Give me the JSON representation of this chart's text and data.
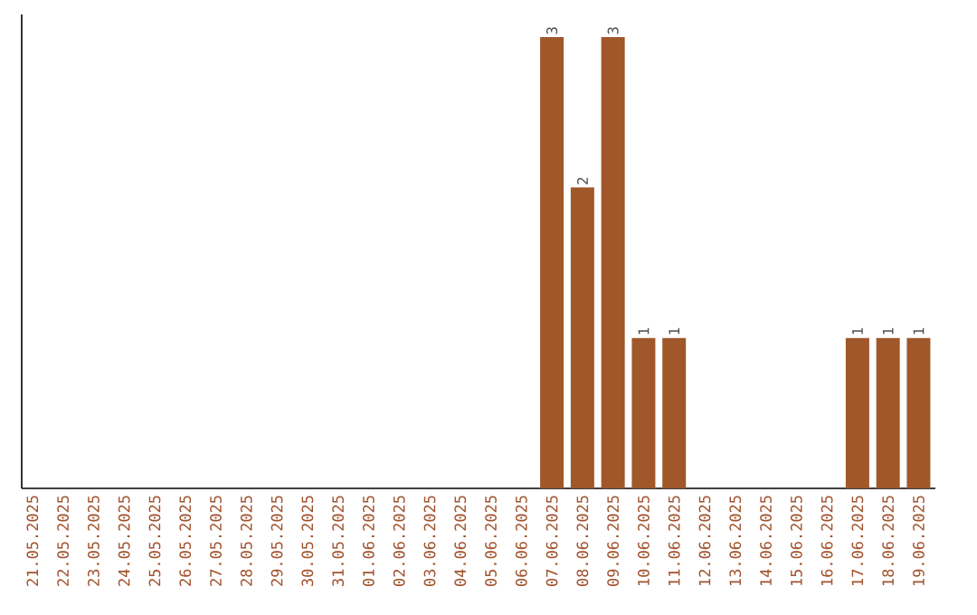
{
  "chart_data": {
    "type": "bar",
    "categories": [
      "21.05.2025",
      "22.05.2025",
      "23.05.2025",
      "24.05.2025",
      "25.05.2025",
      "26.05.2025",
      "27.05.2025",
      "28.05.2025",
      "29.05.2025",
      "30.05.2025",
      "31.05.2025",
      "01.06.2025",
      "02.06.2025",
      "03.06.2025",
      "04.06.2025",
      "05.06.2025",
      "06.06.2025",
      "07.06.2025",
      "08.06.2025",
      "09.06.2025",
      "10.06.2025",
      "11.06.2025",
      "12.06.2025",
      "13.06.2025",
      "14.06.2025",
      "15.06.2025",
      "16.06.2025",
      "17.06.2025",
      "18.06.2025",
      "19.06.2025"
    ],
    "values": [
      null,
      null,
      null,
      null,
      null,
      null,
      null,
      null,
      null,
      null,
      null,
      null,
      null,
      null,
      null,
      null,
      null,
      3,
      2,
      3,
      1,
      1,
      null,
      null,
      null,
      null,
      null,
      1,
      1,
      1
    ],
    "value_labels": [
      null,
      null,
      null,
      null,
      null,
      null,
      null,
      null,
      null,
      null,
      null,
      null,
      null,
      null,
      null,
      null,
      null,
      "3",
      "2",
      "3",
      "1",
      "1",
      null,
      null,
      null,
      null,
      null,
      "1",
      "1",
      "1"
    ],
    "color": "#a0572a",
    "ylim": [
      0,
      3.15
    ],
    "tick_labels": "x",
    "grid": false
  }
}
